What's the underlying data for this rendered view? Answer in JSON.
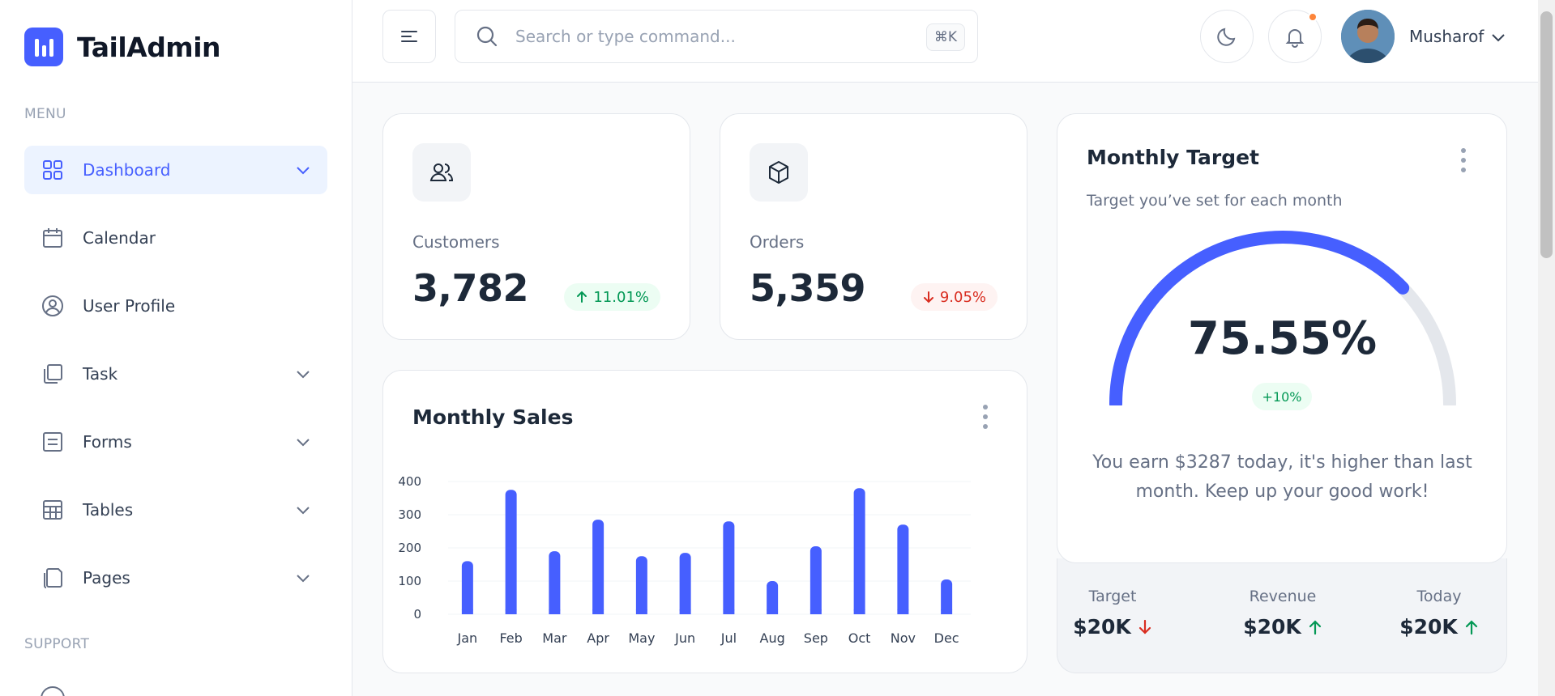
{
  "brand": {
    "name": "TailAdmin"
  },
  "sidebar": {
    "menu_label": "MENU",
    "support_label": "SUPPORT",
    "items": [
      {
        "label": "Dashboard",
        "icon": "grid-icon"
      },
      {
        "label": "Calendar",
        "icon": "calendar-icon"
      },
      {
        "label": "User Profile",
        "icon": "user-circle-icon"
      },
      {
        "label": "Task",
        "icon": "task-icon"
      },
      {
        "label": "Forms",
        "icon": "form-icon"
      },
      {
        "label": "Tables",
        "icon": "table-icon"
      },
      {
        "label": "Pages",
        "icon": "pages-icon"
      }
    ]
  },
  "header": {
    "search_placeholder": "Search or type command...",
    "search_shortcut": "⌘K",
    "user_name": "Musharof"
  },
  "metrics": [
    {
      "label": "Customers",
      "value": "3,782",
      "change": "11.01%",
      "direction": "up",
      "icon": "users-icon"
    },
    {
      "label": "Orders",
      "value": "5,359",
      "change": "9.05%",
      "direction": "down",
      "icon": "box-icon"
    }
  ],
  "monthly_sales": {
    "title": "Monthly Sales"
  },
  "chart_data": {
    "type": "bar",
    "categories": [
      "Jan",
      "Feb",
      "Mar",
      "Apr",
      "May",
      "Jun",
      "Jul",
      "Aug",
      "Sep",
      "Oct",
      "Nov",
      "Dec"
    ],
    "values": [
      160,
      375,
      190,
      285,
      175,
      185,
      280,
      100,
      205,
      380,
      270,
      105
    ],
    "ylim": [
      0,
      400
    ],
    "yticks": [
      0,
      100,
      200,
      300,
      400
    ],
    "ytick_labels": [
      "0",
      "100",
      "200",
      "300",
      "400"
    ],
    "grid": true,
    "color": "#465fff",
    "title": "",
    "xlabel": "",
    "ylabel": ""
  },
  "monthly_target": {
    "title": "Monthly Target",
    "subtitle": "Target you’ve set for each month",
    "percent": 75.55,
    "percent_label": "75.55%",
    "change": "+10%",
    "message": "You earn $3287 today, it's higher than last month. Keep up your good work!",
    "stats": [
      {
        "label": "Target",
        "value": "$20K",
        "direction": "down"
      },
      {
        "label": "Revenue",
        "value": "$20K",
        "direction": "up"
      },
      {
        "label": "Today",
        "value": "$20K",
        "direction": "up"
      }
    ]
  },
  "colors": {
    "brand": "#465fff",
    "success": "#039855",
    "danger": "#d92d20",
    "notification": "#fd853a"
  }
}
